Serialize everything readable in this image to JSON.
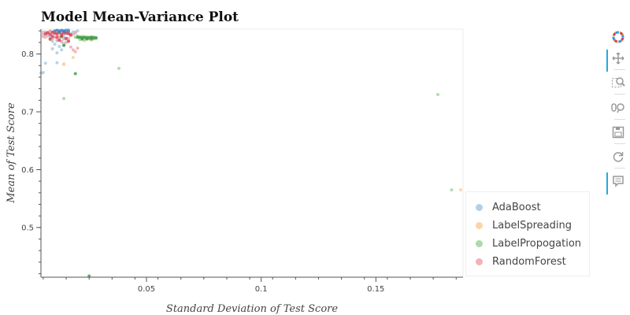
{
  "title": "Model Mean-Variance Plot",
  "chart_data": {
    "type": "scatter",
    "title": "Model Mean-Variance Plot",
    "xlabel": "Standard Deviation of Test Score",
    "ylabel": "Mean of Test Score",
    "xlim": [
      0.004,
      0.188
    ],
    "ylim": [
      0.414,
      0.843
    ],
    "xticks": [
      0.05,
      0.1,
      0.15
    ],
    "xtick_labels": [
      "0.05",
      "0.1",
      "0.15"
    ],
    "yticks": [
      0.5,
      0.6,
      0.7,
      0.8
    ],
    "ytick_labels": [
      "0.5",
      "0.6",
      "0.7",
      "0.8"
    ],
    "grid": false,
    "legend_position": "bottom-right, outside plot",
    "series": [
      {
        "name": "AdaBoost",
        "color": "#a6c8e4",
        "x": [
          0.005,
          0.006,
          0.007,
          0.008,
          0.009,
          0.01,
          0.011,
          0.012,
          0.013,
          0.014,
          0.015,
          0.016,
          0.017,
          0.018,
          0.019,
          0.02,
          0.008,
          0.01,
          0.012,
          0.014,
          0.007,
          0.009,
          0.011,
          0.013,
          0.015,
          0.01,
          0.012,
          0.014,
          0.016,
          0.013,
          0.009,
          0.011,
          0.006,
          0.004,
          0.005,
          0.016,
          0.017,
          0.012,
          0.008,
          0.011
        ],
        "y": [
          0.838,
          0.834,
          0.836,
          0.839,
          0.832,
          0.836,
          0.84,
          0.836,
          0.838,
          0.834,
          0.837,
          0.839,
          0.835,
          0.838,
          0.836,
          0.84,
          0.826,
          0.829,
          0.824,
          0.829,
          0.831,
          0.822,
          0.823,
          0.821,
          0.826,
          0.817,
          0.813,
          0.818,
          0.823,
          0.807,
          0.809,
          0.802,
          0.784,
          0.767,
          0.768,
          0.842,
          0.833,
          0.827,
          0.825,
          0.785
        ]
      },
      {
        "name": "LabelSpreading",
        "color": "#fdcd9b",
        "x": [
          0.02,
          0.021,
          0.022,
          0.023,
          0.024,
          0.025,
          0.026,
          0.027,
          0.022,
          0.024,
          0.026,
          0.021,
          0.023,
          0.025,
          0.019,
          0.018,
          0.014,
          0.014,
          0.187,
          0.01
        ],
        "y": [
          0.83,
          0.828,
          0.831,
          0.827,
          0.83,
          0.829,
          0.828,
          0.83,
          0.825,
          0.826,
          0.824,
          0.826,
          0.823,
          0.827,
          0.829,
          0.794,
          0.783,
          0.782,
          0.565,
          0.838
        ]
      },
      {
        "name": "LabelPropogation",
        "color": "#9fd49a",
        "x": [
          0.02,
          0.021,
          0.022,
          0.023,
          0.024,
          0.025,
          0.026,
          0.027,
          0.028,
          0.021,
          0.023,
          0.025,
          0.027,
          0.022,
          0.024,
          0.026,
          0.028,
          0.019,
          0.02,
          0.038,
          0.014,
          0.177,
          0.183
        ],
        "y": [
          0.829,
          0.828,
          0.829,
          0.829,
          0.828,
          0.829,
          0.829,
          0.828,
          0.828,
          0.825,
          0.825,
          0.826,
          0.826,
          0.827,
          0.827,
          0.827,
          0.827,
          0.829,
          0.831,
          0.775,
          0.723,
          0.73,
          0.565
        ]
      },
      {
        "name": "RandomForest",
        "color": "#eea6ab",
        "x": [
          0.005,
          0.006,
          0.007,
          0.008,
          0.009,
          0.01,
          0.011,
          0.012,
          0.013,
          0.014,
          0.015,
          0.016,
          0.017,
          0.018,
          0.019,
          0.008,
          0.01,
          0.012,
          0.014,
          0.016,
          0.009,
          0.011,
          0.013,
          0.015,
          0.006,
          0.005,
          0.014,
          0.017,
          0.02,
          0.019,
          0.018
        ],
        "y": [
          0.834,
          0.838,
          0.835,
          0.84,
          0.836,
          0.838,
          0.834,
          0.837,
          0.839,
          0.835,
          0.838,
          0.836,
          0.832,
          0.834,
          0.838,
          0.831,
          0.829,
          0.83,
          0.826,
          0.827,
          0.826,
          0.824,
          0.822,
          0.82,
          0.829,
          0.83,
          0.815,
          0.812,
          0.81,
          0.804,
          0.807
        ]
      },
      {
        "name": "",
        "color": "#3a9b4a",
        "x": [
          0.02,
          0.021,
          0.022,
          0.023,
          0.024,
          0.025,
          0.026,
          0.027,
          0.028,
          0.022,
          0.024,
          0.026,
          0.013,
          0.014,
          0.019,
          0.025
        ],
        "y": [
          0.829,
          0.829,
          0.828,
          0.829,
          0.828,
          0.828,
          0.829,
          0.828,
          0.828,
          0.826,
          0.826,
          0.826,
          0.83,
          0.815,
          0.766,
          0.416
        ]
      },
      {
        "name": "",
        "color": "#d9414a",
        "x": [
          0.006,
          0.007,
          0.008,
          0.009,
          0.01,
          0.011,
          0.012,
          0.013,
          0.014,
          0.015,
          0.016,
          0.017,
          0.009,
          0.011,
          0.013,
          0.015,
          0.008,
          0.012,
          0.016
        ],
        "y": [
          0.835,
          0.837,
          0.834,
          0.838,
          0.836,
          0.835,
          0.838,
          0.834,
          0.837,
          0.836,
          0.835,
          0.833,
          0.83,
          0.829,
          0.831,
          0.827,
          0.826,
          0.824,
          0.822
        ]
      },
      {
        "name": "",
        "color": "#3c86c6",
        "x": [
          0.01,
          0.011,
          0.012,
          0.013,
          0.014,
          0.015,
          0.016,
          0.012,
          0.014
        ],
        "y": [
          0.84,
          0.841,
          0.84,
          0.841,
          0.84,
          0.841,
          0.84,
          0.838,
          0.839
        ]
      }
    ]
  },
  "legend": {
    "items": [
      {
        "label": "AdaBoost",
        "color": "#a6c8e4"
      },
      {
        "label": "LabelSpreading",
        "color": "#fdcd9b"
      },
      {
        "label": "LabelPropogation",
        "color": "#9fd49a"
      },
      {
        "label": "RandomForest",
        "color": "#eea6ab"
      }
    ]
  },
  "toolbar": {
    "tools": [
      {
        "icon": "bokeh-logo-icon",
        "active": false
      },
      {
        "icon": "pan-icon",
        "active": true
      },
      {
        "icon": "box-zoom-icon",
        "active": false
      },
      {
        "icon": "wheel-zoom-icon",
        "active": false
      },
      {
        "icon": "save-icon",
        "active": false
      },
      {
        "icon": "reset-icon",
        "active": false
      },
      {
        "icon": "hover-icon",
        "active": true
      }
    ]
  }
}
